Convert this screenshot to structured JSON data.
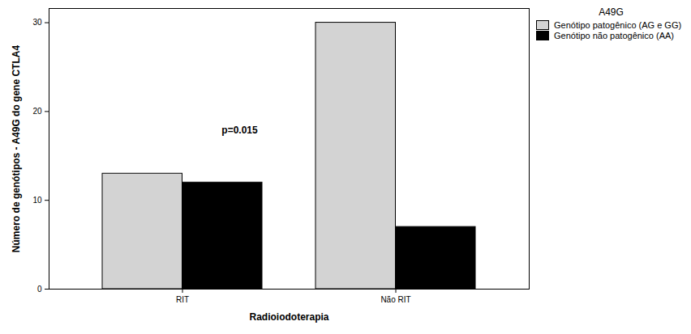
{
  "chart_data": {
    "type": "bar",
    "categories": [
      "RIT",
      "Não RIT"
    ],
    "series": [
      {
        "name": "Genótipo patogênico (AG e GG)",
        "color": "#d3d3d3",
        "values": [
          13,
          30
        ]
      },
      {
        "name": "Genótipo não patogênico (AA)",
        "color": "#000000",
        "values": [
          12,
          7
        ]
      }
    ],
    "xlabel": "Radioiodoterapia",
    "ylabel": "Número de genótipos - A49G do gene CTLA4",
    "ylim": [
      0,
      31.6
    ],
    "yticks": [
      0,
      10,
      20,
      30
    ],
    "legend_title": "A49G",
    "legend": "top-right",
    "annotations": [
      "p=0.015"
    ]
  }
}
